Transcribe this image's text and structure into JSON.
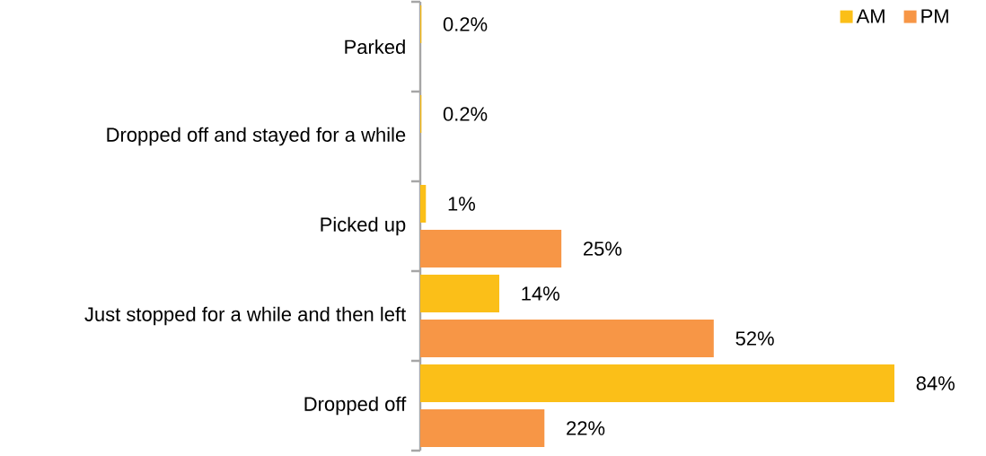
{
  "chart_data": {
    "type": "bar",
    "orientation": "horizontal",
    "legend": "top right",
    "categories": [
      "Parked",
      "Dropped off and stayed for a while",
      "Picked up",
      "Just stopped for a while and then left",
      "Dropped off"
    ],
    "series": [
      {
        "name": "AM",
        "color": "#fbbf18",
        "values": [
          0.2,
          0.2,
          1,
          14,
          84
        ],
        "value_labels": [
          "0.2%",
          "0.2%",
          "1%",
          "14%",
          "84%"
        ]
      },
      {
        "name": "PM",
        "color": "#f79646",
        "values": [
          null,
          null,
          25,
          52,
          22
        ],
        "value_labels": [
          null,
          null,
          "25%",
          "52%",
          "22%"
        ]
      }
    ]
  }
}
